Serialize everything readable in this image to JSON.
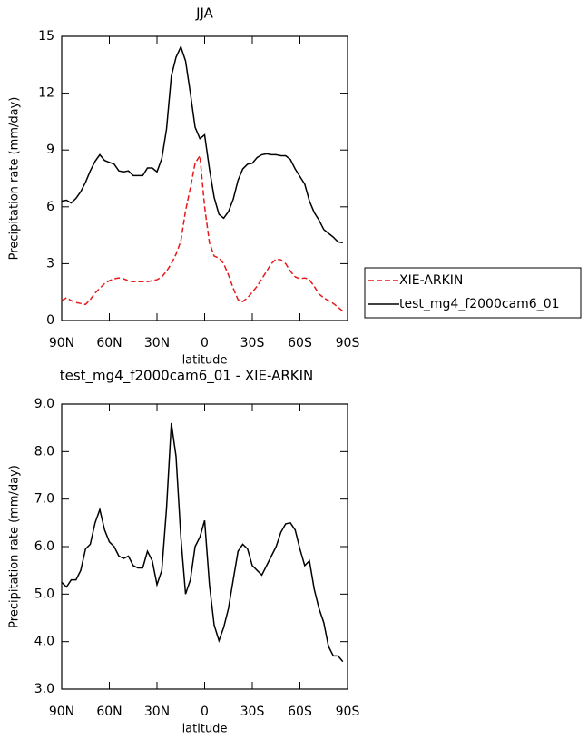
{
  "chart_data": [
    {
      "type": "line",
      "title": "JJA",
      "xlabel": "latitude",
      "ylabel": "Precipitation rate (mm/day)",
      "x": [
        90,
        87,
        84,
        81,
        78,
        75,
        72,
        69,
        66,
        63,
        60,
        57,
        54,
        51,
        48,
        45,
        42,
        39,
        36,
        33,
        30,
        27,
        24,
        21,
        18,
        15,
        12,
        9,
        6,
        3,
        0,
        -3,
        -6,
        -9,
        -12,
        -15,
        -18,
        -21,
        -24,
        -27,
        -30,
        -33,
        -36,
        -39,
        -42,
        -45,
        -48,
        -51,
        -54,
        -57,
        -60,
        -63,
        -66,
        -69,
        -72,
        -75,
        -78,
        -81,
        -84,
        -87
      ],
      "series": [
        {
          "name": "XIE-ARKIN",
          "color": "#e41a1c",
          "dashed": true,
          "values": [
            1.05,
            1.2,
            1.05,
            0.95,
            0.9,
            0.85,
            1.1,
            1.45,
            1.7,
            1.95,
            2.1,
            2.2,
            2.25,
            2.2,
            2.1,
            2.05,
            2.05,
            2.05,
            2.05,
            2.1,
            2.15,
            2.3,
            2.6,
            3.0,
            3.5,
            4.2,
            5.8,
            7.0,
            8.3,
            8.7,
            6.0,
            4.1,
            3.4,
            3.3,
            3.0,
            2.4,
            1.7,
            1.1,
            1.0,
            1.2,
            1.5,
            1.8,
            2.2,
            2.6,
            3.0,
            3.25,
            3.2,
            3.0,
            2.6,
            2.3,
            2.2,
            2.25,
            2.15,
            1.8,
            1.4,
            1.2,
            1.05,
            0.9,
            0.7,
            0.5
          ]
        },
        {
          "name": "test_mg4_f2000cam6_01",
          "color": "#000000",
          "dashed": false,
          "values": [
            6.3,
            6.35,
            6.2,
            6.45,
            6.8,
            7.3,
            7.9,
            8.4,
            8.75,
            8.45,
            8.35,
            8.25,
            7.9,
            7.85,
            7.9,
            7.65,
            7.65,
            7.65,
            8.05,
            8.05,
            7.85,
            8.55,
            10.1,
            12.9,
            13.9,
            14.45,
            13.7,
            12.0,
            10.2,
            9.6,
            9.8,
            8.0,
            6.5,
            5.6,
            5.4,
            5.75,
            6.4,
            7.4,
            8.0,
            8.25,
            8.3,
            8.6,
            8.75,
            8.8,
            8.75,
            8.75,
            8.7,
            8.7,
            8.5,
            8.0,
            7.6,
            7.2,
            6.3,
            5.7,
            5.3,
            4.8,
            4.6,
            4.4,
            4.15,
            4.1
          ]
        }
      ],
      "xlim": [
        90,
        -90
      ],
      "xticks": [
        {
          "value": 90,
          "label": "90N"
        },
        {
          "value": 60,
          "label": "60N"
        },
        {
          "value": 30,
          "label": "30N"
        },
        0,
        {
          "value": -30,
          "label": "30S"
        },
        {
          "value": -60,
          "label": "60S"
        },
        {
          "value": -90,
          "label": "90S"
        }
      ],
      "ylim": [
        0,
        15
      ],
      "yticks": [
        0,
        3,
        6,
        9,
        12,
        15
      ],
      "legend": "right"
    },
    {
      "type": "line",
      "title": "test_mg4_f2000cam6_01 - XIE-ARKIN",
      "xlabel": "latitude",
      "ylabel": "Precipitation rate (mm/day)",
      "x": [
        90,
        87,
        84,
        81,
        78,
        75,
        72,
        69,
        66,
        63,
        60,
        57,
        54,
        51,
        48,
        45,
        42,
        39,
        36,
        33,
        30,
        27,
        24,
        21,
        18,
        15,
        12,
        9,
        6,
        3,
        0,
        -3,
        -6,
        -9,
        -12,
        -15,
        -18,
        -21,
        -24,
        -27,
        -30,
        -33,
        -36,
        -39,
        -42,
        -45,
        -48,
        -51,
        -54,
        -57,
        -60,
        -63,
        -66,
        -69,
        -72,
        -75,
        -78,
        -81,
        -84,
        -87
      ],
      "series": [
        {
          "color": "#000000",
          "dashed": false,
          "values": [
            5.25,
            5.15,
            5.3,
            5.3,
            5.5,
            5.95,
            6.05,
            6.5,
            6.78,
            6.35,
            6.1,
            6.0,
            5.8,
            5.75,
            5.8,
            5.6,
            5.55,
            5.55,
            5.9,
            5.7,
            5.2,
            5.5,
            6.8,
            8.6,
            7.9,
            6.2,
            5.0,
            5.3,
            6.0,
            6.2,
            6.55,
            5.2,
            4.35,
            4.02,
            4.3,
            4.7,
            5.3,
            5.9,
            6.05,
            5.95,
            5.6,
            5.5,
            5.4,
            5.6,
            5.8,
            6.0,
            6.3,
            6.48,
            6.5,
            6.35,
            5.95,
            5.6,
            5.7,
            5.1,
            4.7,
            4.4,
            3.9,
            3.7,
            3.7,
            3.58
          ]
        }
      ],
      "xlim": [
        90,
        -90
      ],
      "xticks": [
        {
          "value": 90,
          "label": "90N"
        },
        {
          "value": 60,
          "label": "60N"
        },
        {
          "value": 30,
          "label": "30N"
        },
        0,
        {
          "value": -30,
          "label": "30S"
        },
        {
          "value": -60,
          "label": "60S"
        },
        {
          "value": -90,
          "label": "90S"
        }
      ],
      "ylim": [
        3,
        9
      ],
      "yticks": [
        {
          "value": 3,
          "label": "3.0"
        },
        {
          "value": 4,
          "label": "4.0"
        },
        {
          "value": 5,
          "label": "5.0"
        },
        {
          "value": 6,
          "label": "6.0"
        },
        {
          "value": 7,
          "label": "7.0"
        },
        {
          "value": 8,
          "label": "8.0"
        },
        {
          "value": 9,
          "label": "9.0"
        }
      ]
    }
  ]
}
